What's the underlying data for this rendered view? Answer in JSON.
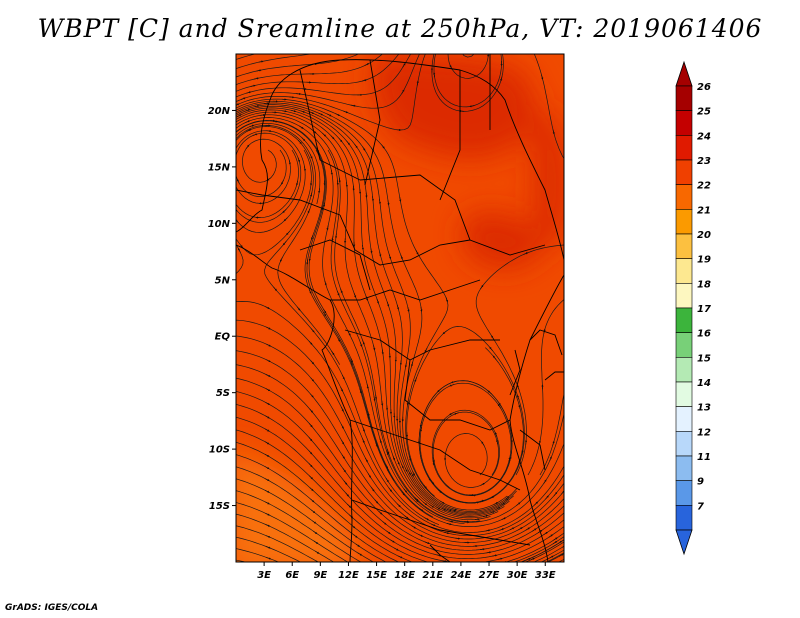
{
  "title": "WBPT [C] and Sreamline at 250hPa, VT: 2019061406",
  "credit": "GrADS: IGES/COLA",
  "map": {
    "lon_range": [
      0,
      35
    ],
    "lat_range": [
      -20,
      25
    ],
    "lat_ticks": [
      {
        "value": 20,
        "label": "20N"
      },
      {
        "value": 15,
        "label": "15N"
      },
      {
        "value": 10,
        "label": "10N"
      },
      {
        "value": 5,
        "label": "5N"
      },
      {
        "value": 0,
        "label": "EQ"
      },
      {
        "value": -5,
        "label": "5S"
      },
      {
        "value": -10,
        "label": "10S"
      },
      {
        "value": -15,
        "label": "15S"
      }
    ],
    "lon_ticks": [
      {
        "value": 3,
        "label": "3E"
      },
      {
        "value": 6,
        "label": "6E"
      },
      {
        "value": 9,
        "label": "9E"
      },
      {
        "value": 12,
        "label": "12E"
      },
      {
        "value": 15,
        "label": "15E"
      },
      {
        "value": 18,
        "label": "18E"
      },
      {
        "value": 21,
        "label": "21E"
      },
      {
        "value": 24,
        "label": "24E"
      },
      {
        "value": 27,
        "label": "27E"
      },
      {
        "value": 30,
        "label": "30E"
      },
      {
        "value": 33,
        "label": "33E"
      }
    ],
    "base_color": "#f04a00",
    "regions": [
      {
        "name": "warm-patch-north",
        "color": "#dc2a00"
      },
      {
        "name": "warm-patch-east",
        "color": "#dc2a00"
      },
      {
        "name": "warm-patch-central",
        "color": "#dc2a00"
      },
      {
        "name": "cool-patch-southwest",
        "color": "#f87008"
      }
    ]
  },
  "colorbar": {
    "entries": [
      {
        "label": "26",
        "color": "#a50000"
      },
      {
        "label": "25",
        "color": "#c40000"
      },
      {
        "label": "24",
        "color": "#e01a00"
      },
      {
        "label": "23",
        "color": "#f04000"
      },
      {
        "label": "22",
        "color": "#f86800"
      },
      {
        "label": "21",
        "color": "#fb9a00"
      },
      {
        "label": "20",
        "color": "#fcc040"
      },
      {
        "label": "19",
        "color": "#fde890"
      },
      {
        "label": "18",
        "color": "#fdf7c0"
      },
      {
        "label": "17",
        "color": "#3cb43c"
      },
      {
        "label": "16",
        "color": "#78d078"
      },
      {
        "label": "15",
        "color": "#b4eab4"
      },
      {
        "label": "14",
        "color": "#e2fbe2"
      },
      {
        "label": "13",
        "color": "#e4f2ff"
      },
      {
        "label": "12",
        "color": "#b8d8fa"
      },
      {
        "label": "11",
        "color": "#8cbcf0"
      },
      {
        "label": "9",
        "color": "#5a98e8"
      },
      {
        "label": "7",
        "color": "#2864dc"
      }
    ],
    "bottom_color": "#2864dc"
  }
}
